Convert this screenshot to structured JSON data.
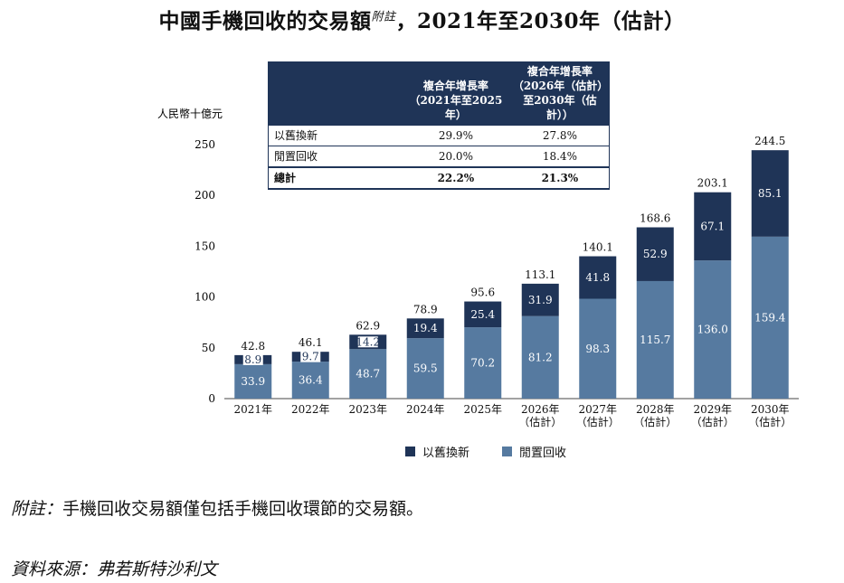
{
  "title": {
    "main": "中國手機回收的交易額",
    "sup": "附註",
    "tail": "，2021年至2030年（估計）"
  },
  "cagr_table": {
    "header_col1": {
      "line1": "複合年增長率",
      "line2": "（2021年至2025年）"
    },
    "header_col2": {
      "line1": "複合年增長率",
      "line2": "（2026年（估計）",
      "line3": "至2030年（估計））"
    },
    "rows": [
      {
        "label": "以舊換新",
        "c1": "29.9%",
        "c2": "27.8%"
      },
      {
        "label": "閒置回收",
        "c1": "20.0%",
        "c2": "18.4%"
      }
    ],
    "total": {
      "label": "總計",
      "c1": "22.2%",
      "c2": "21.3%"
    }
  },
  "footnote": {
    "label": "附註：",
    "text": "手機回收交易額僅包括手機回收環節的交易額。"
  },
  "source": {
    "label": "資料來源：",
    "text": "弗若斯特沙利文"
  },
  "chart_data": {
    "type": "bar",
    "stacked": true,
    "ylabel": "人民幣十億元",
    "ylim": [
      0,
      250
    ],
    "yticks": [
      0,
      50,
      100,
      150,
      200,
      250
    ],
    "categories": [
      [
        "2021年"
      ],
      [
        "2022年"
      ],
      [
        "2023年"
      ],
      [
        "2024年"
      ],
      [
        "2025年"
      ],
      [
        "2026年",
        "（估計）"
      ],
      [
        "2027年",
        "（估計）"
      ],
      [
        "2028年",
        "（估計）"
      ],
      [
        "2029年",
        "（估計）"
      ],
      [
        "2030年",
        "（估計）"
      ]
    ],
    "series": [
      {
        "name": "閒置回收",
        "color": "#567aa0",
        "values": [
          33.9,
          36.4,
          48.7,
          59.5,
          70.2,
          81.2,
          98.3,
          115.7,
          136.0,
          159.4
        ]
      },
      {
        "name": "以舊換新",
        "color": "#1f3457",
        "values": [
          8.9,
          9.7,
          14.2,
          19.4,
          25.4,
          31.9,
          41.8,
          52.9,
          67.1,
          85.1
        ]
      }
    ],
    "totals": [
      42.8,
      46.1,
      62.9,
      78.9,
      95.6,
      113.1,
      140.1,
      168.6,
      203.1,
      244.5
    ],
    "legend_order": [
      "以舊換新",
      "閒置回收"
    ],
    "legend_position": "bottom"
  }
}
